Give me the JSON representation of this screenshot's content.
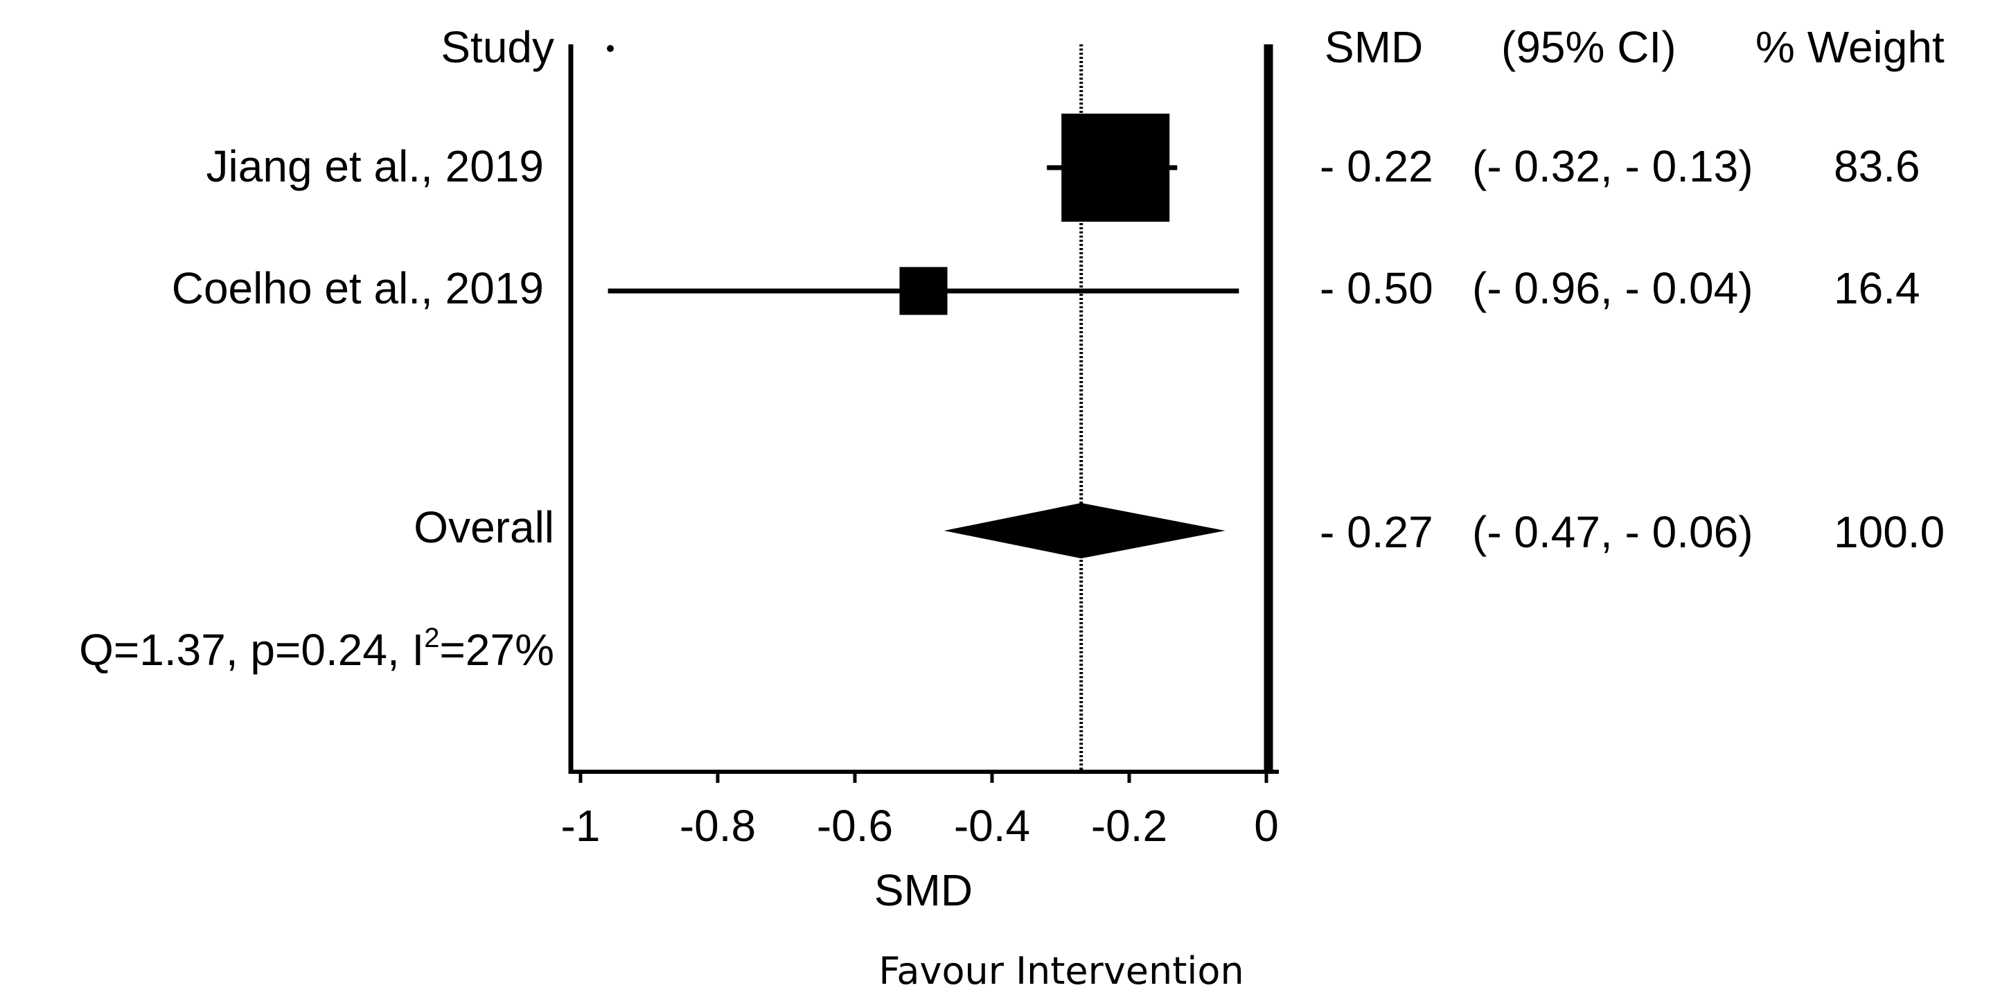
{
  "chart_data": {
    "type": "forest",
    "xlabel": "SMD",
    "favour_label": "Favour Intervention",
    "xlim": [
      -1,
      0
    ],
    "xticks": [
      -1,
      -0.8,
      -0.6,
      -0.4,
      -0.2,
      0
    ],
    "xtick_labels": [
      "-1",
      "-0.8",
      "-0.6",
      "-0.4",
      "-0.2",
      "0"
    ],
    "headers": {
      "study": "Study",
      "smd": "SMD",
      "ci": "(95% CI)",
      "weight": "% Weight"
    },
    "studies": [
      {
        "name": "Jiang et al., 2019",
        "smd": -0.22,
        "lo": -0.32,
        "hi": -0.13,
        "weight": 83.6,
        "smd_text": "- 0.22",
        "ci_text": "(- 0.32, - 0.13)",
        "weight_text": "83.6"
      },
      {
        "name": "Coelho et al., 2019",
        "smd": -0.5,
        "lo": -0.96,
        "hi": -0.04,
        "weight": 16.4,
        "smd_text": "- 0.50",
        "ci_text": "(- 0.96, - 0.04)",
        "weight_text": "16.4"
      }
    ],
    "overall": {
      "name": "Overall",
      "smd": -0.27,
      "lo": -0.47,
      "hi": -0.06,
      "weight": 100.0,
      "smd_text": "- 0.27",
      "ci_text": "(- 0.47, - 0.06)",
      "weight_text": "100.0"
    },
    "heterogeneity": {
      "prefix": "Q=1.37, p=0.24, I",
      "superscript": "2",
      "suffix": "=27%"
    },
    "reference_line": -0.27,
    "null_line": 0
  }
}
